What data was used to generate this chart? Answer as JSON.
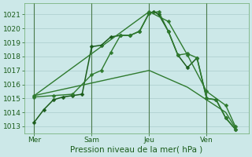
{
  "background_color": "#cce8e8",
  "grid_color": "#aacccc",
  "line_color_dark": "#1a5c1a",
  "line_color_mid": "#2e7a2e",
  "title": "Pression niveau de la mer( hPa )",
  "ylim": [
    1012.5,
    1021.8
  ],
  "yticks": [
    1013,
    1014,
    1015,
    1016,
    1017,
    1018,
    1019,
    1020,
    1021
  ],
  "day_labels": [
    "Mer",
    "Sam",
    "Jeu",
    "Ven"
  ],
  "day_positions": [
    0,
    3,
    6,
    9
  ],
  "series": [
    {
      "x": [
        0,
        0.5,
        1.0,
        1.5,
        2.0,
        2.5,
        3.0,
        3.5,
        4.0,
        4.5,
        5.0,
        5.5,
        6.0,
        6.25,
        6.5,
        7.0,
        7.5,
        8.0,
        8.5,
        9.0,
        9.5,
        10.0,
        10.5
      ],
      "y": [
        1013.3,
        1014.2,
        1014.9,
        1015.1,
        1015.2,
        1015.3,
        1018.7,
        1018.8,
        1019.4,
        1019.5,
        1019.5,
        1019.8,
        1021.1,
        1021.2,
        1021.0,
        1019.8,
        1018.1,
        1017.2,
        1017.9,
        1015.0,
        1014.9,
        1013.6,
        1012.8
      ],
      "style": "-",
      "marker": "D",
      "markersize": 2.5,
      "linewidth": 1.1,
      "color": "#1a5c1a"
    },
    {
      "x": [
        0,
        1.0,
        2.0,
        3.0,
        3.5,
        4.0,
        4.5,
        5.0,
        5.5,
        6.0,
        6.5,
        7.0,
        7.5,
        8.0,
        8.5,
        9.0,
        9.5,
        10.0,
        10.5
      ],
      "y": [
        1015.1,
        1015.2,
        1015.3,
        1016.7,
        1017.0,
        1018.3,
        1019.5,
        1019.5,
        1019.8,
        1021.1,
        1021.2,
        1019.8,
        1018.1,
        1018.2,
        1017.9,
        1015.0,
        1014.9,
        1013.6,
        1012.8
      ],
      "style": "-",
      "marker": "D",
      "markersize": 2.5,
      "linewidth": 1.0,
      "color": "#2e7a2e"
    },
    {
      "x": [
        0,
        6.0,
        7.0,
        8.0,
        9.0,
        10.0,
        10.5
      ],
      "y": [
        1015.2,
        1021.2,
        1020.5,
        1018.1,
        1015.5,
        1014.5,
        1013.0
      ],
      "style": "-",
      "marker": "D",
      "markersize": 2.5,
      "linewidth": 1.0,
      "color": "#2e7a2e"
    },
    {
      "x": [
        0,
        6.0,
        8.0,
        10.0,
        10.5
      ],
      "y": [
        1015.2,
        1017.0,
        1015.8,
        1014.0,
        1012.9
      ],
      "style": "-",
      "marker": null,
      "markersize": 0,
      "linewidth": 1.0,
      "color": "#2e7a2e"
    }
  ],
  "vline_positions": [
    0,
    3,
    6,
    9
  ],
  "vline_color": "#4a7a4a",
  "figsize": [
    3.2,
    2.0
  ],
  "dpi": 100
}
